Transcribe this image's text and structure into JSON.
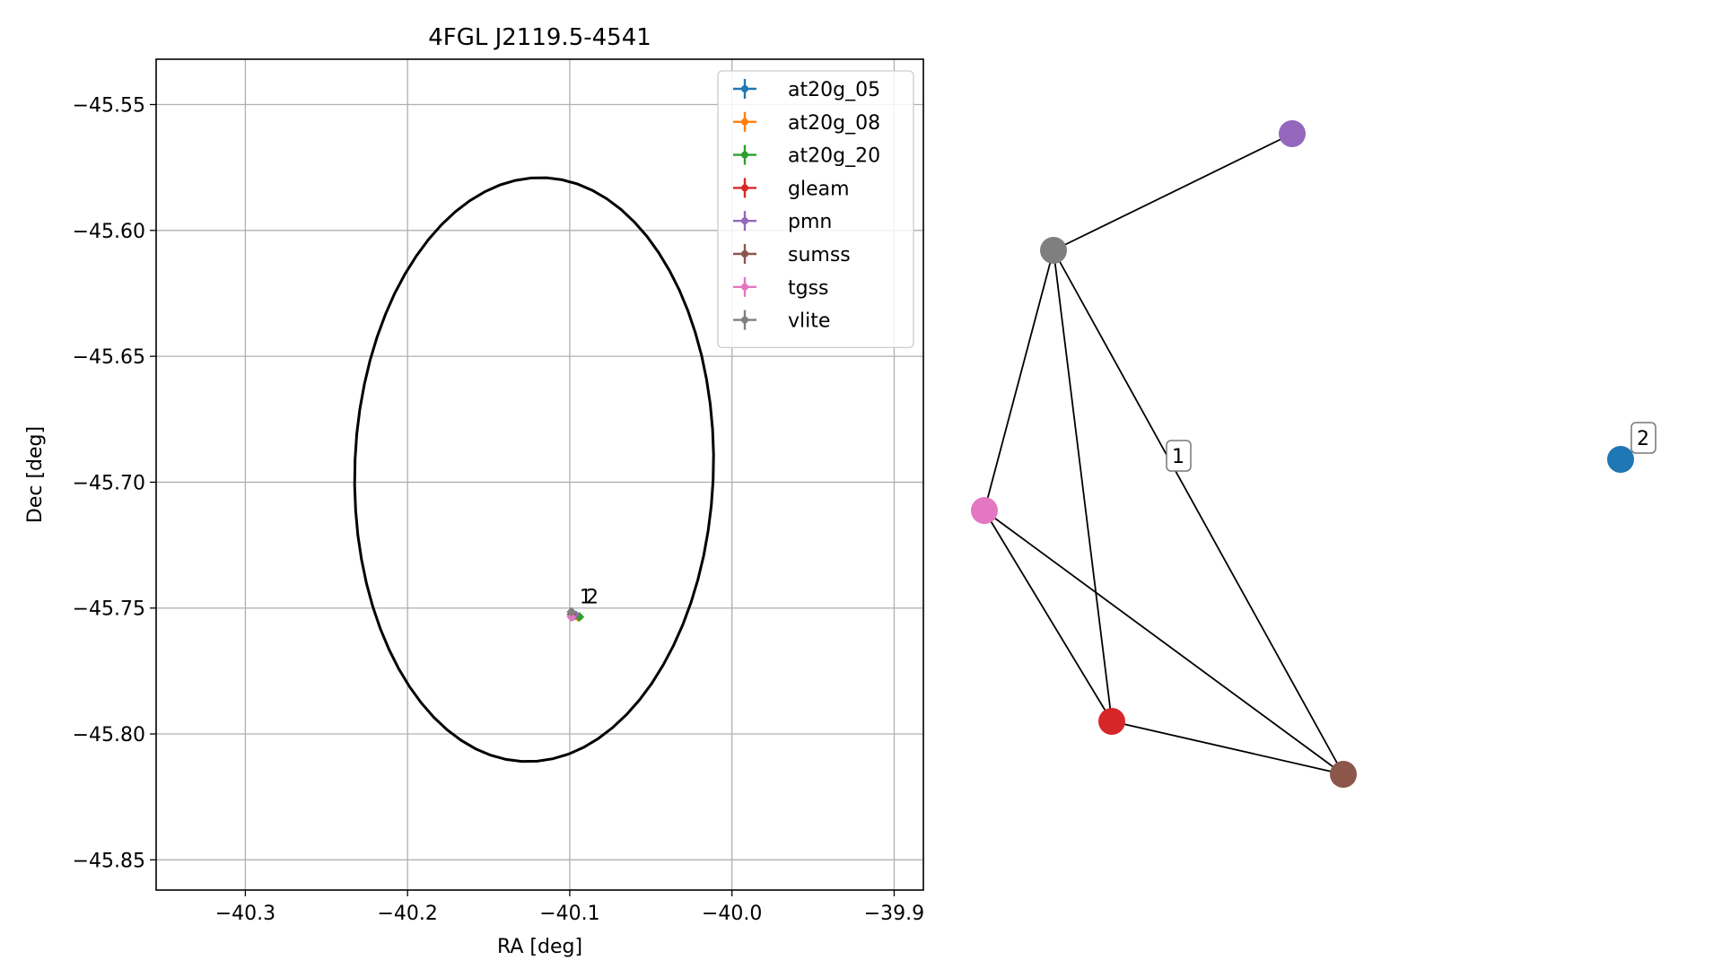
{
  "chart_data": [
    {
      "type": "scatter",
      "title": "4FGL J2119.5-4541",
      "xlabel": "RA [deg]",
      "ylabel": "Dec [deg]",
      "xlim": [
        -40.355,
        -39.882
      ],
      "ylim": [
        -45.862,
        -45.532
      ],
      "xticks": [
        -40.3,
        -40.2,
        -40.1,
        -40.0,
        -39.9
      ],
      "xtick_labels": [
        "−40.3",
        "−40.2",
        "−40.1",
        "−40.0",
        "−39.9"
      ],
      "yticks": [
        -45.55,
        -45.6,
        -45.65,
        -45.7,
        -45.75,
        -45.8,
        -45.85
      ],
      "ytick_labels": [
        "−45.55",
        "−45.60",
        "−45.65",
        "−45.70",
        "−45.75",
        "−45.80",
        "−45.85"
      ],
      "grid": true,
      "legend_position": "top-right",
      "ellipse": {
        "center": [
          -40.122,
          -45.695
        ],
        "semi_axes": [
          0.11,
          0.11
        ],
        "angle_deg": -18,
        "color": "#000000"
      },
      "series": [
        {
          "name": "at20g_05",
          "color": "#1f77b4",
          "x": [
            -40.096
          ],
          "y": [
            -45.753
          ]
        },
        {
          "name": "at20g_08",
          "color": "#ff7f0e",
          "x": [
            -40.095
          ],
          "y": [
            -45.7535
          ]
        },
        {
          "name": "at20g_20",
          "color": "#2ca02c",
          "x": [
            -40.094
          ],
          "y": [
            -45.7535
          ]
        },
        {
          "name": "gleam",
          "color": "#d62728",
          "x": [
            -40.098
          ],
          "y": [
            -45.7532
          ]
        },
        {
          "name": "pmn",
          "color": "#9467bd",
          "x": [
            -40.097
          ],
          "y": [
            -45.7528
          ]
        },
        {
          "name": "sumss",
          "color": "#8c564b",
          "x": [
            -40.099
          ],
          "y": [
            -45.7525
          ]
        },
        {
          "name": "tgss",
          "color": "#e377c2",
          "x": [
            -40.099
          ],
          "y": [
            -45.7535
          ]
        },
        {
          "name": "vlite",
          "color": "#7f7f7f",
          "x": [
            -40.099
          ],
          "y": [
            -45.7515
          ]
        }
      ],
      "annotations": [
        {
          "text": "1",
          "x": -40.094,
          "y": -45.7475
        },
        {
          "text": "2",
          "x": -40.09,
          "y": -45.7475
        }
      ]
    },
    {
      "type": "network",
      "nodes": [
        {
          "id": "pmn",
          "color": "#9467bd"
        },
        {
          "id": "vlite",
          "color": "#7f7f7f"
        },
        {
          "id": "tgss",
          "color": "#e377c2"
        },
        {
          "id": "gleam",
          "color": "#d62728"
        },
        {
          "id": "sumss",
          "color": "#8c564b"
        },
        {
          "id": "at20g_05",
          "color": "#1f77b4"
        }
      ],
      "edges": [
        [
          "vlite",
          "pmn"
        ],
        [
          "vlite",
          "tgss"
        ],
        [
          "vlite",
          "gleam"
        ],
        [
          "vlite",
          "sumss"
        ],
        [
          "tgss",
          "gleam"
        ],
        [
          "tgss",
          "sumss"
        ],
        [
          "gleam",
          "sumss"
        ]
      ],
      "labels": [
        {
          "text": "1",
          "group": "component-1"
        },
        {
          "text": "2",
          "group": "component-2"
        }
      ]
    }
  ]
}
